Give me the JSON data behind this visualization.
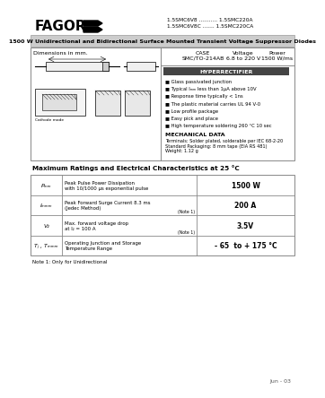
{
  "bg_color": "#ffffff",
  "fagor_text": "FAGOR",
  "part_numbers_line1": "1.5SMC6V8 ........... 1.5SMC220A",
  "part_numbers_line2": "1.5SMC6V8C ....... 1.5SMC220CA",
  "main_title": "1500 W Unidirectional and Bidirectional Surface Mounted Transient Voltage Suppressor Diodes",
  "features": [
    "Glass passivated junction",
    "Typical Iₘₘ less than 1μA above 10V",
    "Response time typically < 1ns",
    "The plastic material carries UL 94 V-0",
    "Low profile package",
    "Easy pick and place",
    "High temperature soldering 260 °C 10 sec"
  ],
  "mech_title": "MECHANICAL DATA",
  "mech_text": "Terminals: Solder plated, solderable per IEC 68-2-20\nStandard Packaging: 8 mm tape (EIA RS 481)\nWeight: 1.12 g",
  "table_title": "Maximum Ratings and Electrical Characteristics at 25 °C",
  "table_rows": [
    {
      "symbol": "Pₘₘ",
      "description": "Peak Pulse Power Dissipation\nwith 10/1000 μs exponential pulse",
      "note": "",
      "value": "1500 W"
    },
    {
      "symbol": "Iₘₘₘ",
      "description": "Peak Forward Surge Current 8.3 ms\n(Jedec Method)",
      "note": "(Note 1)",
      "value": "200 A"
    },
    {
      "symbol": "V₂",
      "description": "Max. forward voltage drop\nat I₂ = 100 A",
      "note": "(Note 1)",
      "value": "3.5V"
    },
    {
      "symbol": "Tⱼ , Tₘₘₘ",
      "description": "Operating Junction and Storage\nTemperature Range",
      "note": "",
      "value": "- 65  to + 175 °C"
    }
  ],
  "note_text": "Note 1: Only for Unidirectional",
  "date_text": "Jun - 03",
  "dim_text": "Dimensions in mm.",
  "hyperrectifier_text": "HYPERRECTIFIER"
}
